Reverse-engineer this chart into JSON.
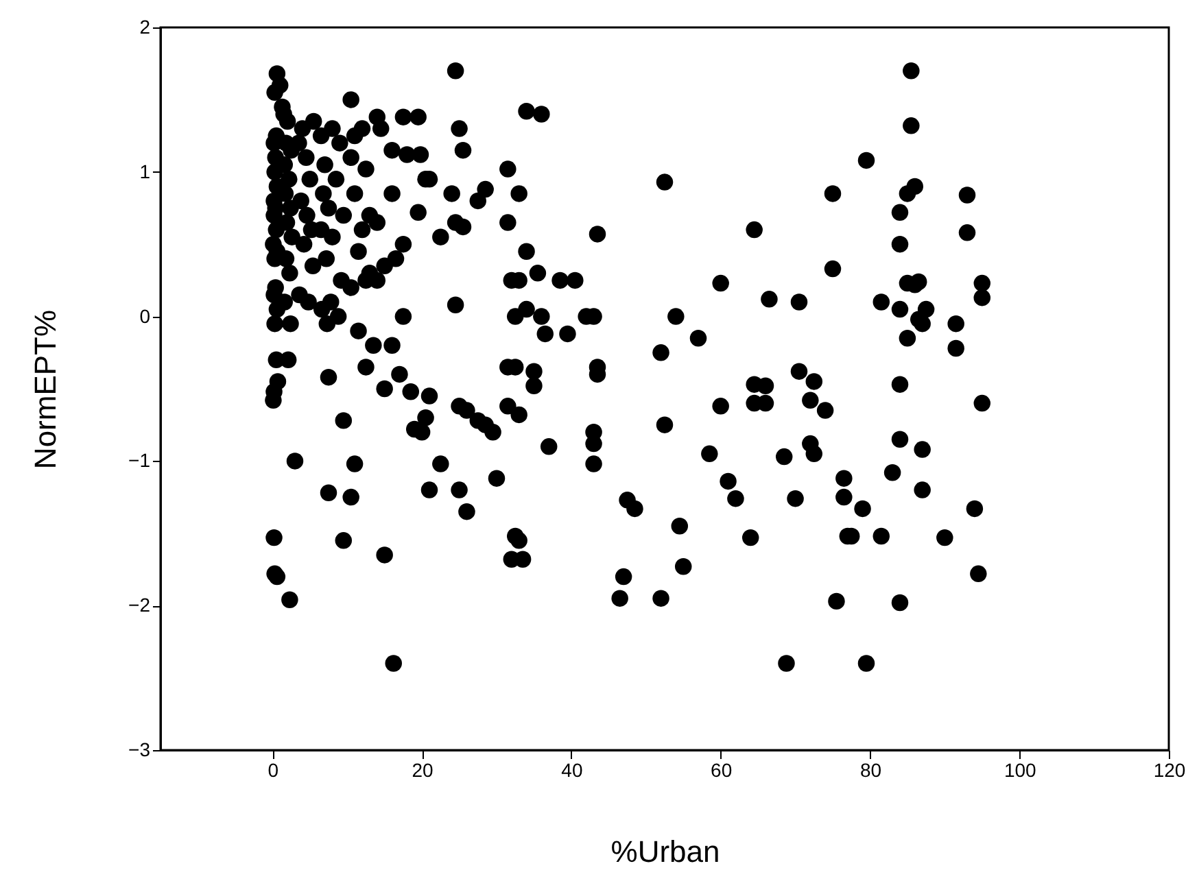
{
  "chart_data": {
    "type": "scatter",
    "xlabel": "%Urban",
    "ylabel": "NormEPT%",
    "xlim": [
      -15,
      120
    ],
    "xticks": [
      0,
      20,
      40,
      60,
      80,
      100,
      120
    ],
    "ylim": [
      -3,
      2
    ],
    "yticks": [
      -3,
      -2,
      -1,
      0,
      1,
      2
    ],
    "grid": false,
    "marker": "circle",
    "series": [
      {
        "color": "#000000",
        "x": [
          0.3,
          0.6,
          1,
          1.3,
          0.5,
          0.2,
          0.4,
          0.3,
          0.6,
          0.2,
          0.4,
          0.2,
          0.5,
          0.1,
          0.6,
          0.3,
          0.4,
          0.2,
          0.6,
          0.3,
          0.5,
          0.7,
          0.2,
          0.1,
          0.2,
          0.3,
          0.6,
          1.5,
          2,
          1.8,
          2.5,
          1.6,
          2.2,
          1.7,
          2.4,
          1.9,
          2.6,
          1.8,
          2.3,
          1.6,
          2.4,
          2.1,
          2.3,
          4,
          5.5,
          3.5,
          4.5,
          5,
          3.8,
          4.6,
          5.2,
          4.2,
          5.4,
          3.6,
          4.8,
          3,
          8,
          6.5,
          9,
          7,
          8.5,
          6.8,
          7.5,
          9.5,
          6.5,
          8,
          7.2,
          9.2,
          7.8,
          6.6,
          8.8,
          7.3,
          7.5,
          7.5,
          9.5,
          9.5,
          10.5,
          12,
          11,
          10.5,
          12.5,
          11,
          13,
          12,
          11.5,
          13,
          10.5,
          12.5,
          11.5,
          13.5,
          12.5,
          11,
          10.5,
          14,
          17.5,
          19.5,
          14.5,
          16,
          18,
          19.8,
          20.5,
          16,
          19.5,
          14,
          17.5,
          16.5,
          15,
          14,
          17.5,
          16,
          17,
          15,
          18.5,
          19,
          20,
          15,
          16.2,
          24.5,
          25,
          25.5,
          21,
          24,
          27.5,
          24.5,
          25.5,
          22.5,
          24.5,
          21,
          25,
          26,
          20.5,
          27.5,
          28.5,
          29.5,
          22.5,
          21,
          25,
          26,
          30,
          28.5,
          34,
          36,
          31.5,
          33,
          31.5,
          34,
          35.5,
          32,
          33,
          34,
          32.5,
          36,
          36.5,
          31.5,
          35,
          32.5,
          35,
          31.5,
          33,
          37,
          32.5,
          33,
          32,
          33.5,
          38.5,
          39.5,
          40.5,
          42,
          43,
          43.5,
          43.5,
          43.5,
          43,
          43,
          43,
          47.5,
          48.5,
          47,
          46.5,
          52.5,
          52,
          52.5,
          52,
          54,
          57,
          54.5,
          55,
          58.5,
          60,
          60,
          61,
          62,
          64.5,
          64.5,
          66,
          64.5,
          66,
          64,
          66.5,
          68.5,
          68.8,
          70.5,
          70.5,
          70,
          72.5,
          72,
          72,
          72.5,
          74,
          75,
          75,
          76.5,
          76.5,
          75.5,
          77,
          77.5,
          79,
          79.5,
          79.5,
          81.5,
          81.5,
          83,
          85.5,
          85.5,
          86,
          85,
          84,
          84,
          85,
          86,
          84,
          87,
          86.5,
          86.5,
          85,
          84,
          84,
          84,
          87,
          87,
          87.5,
          91.5,
          91.5,
          90,
          93,
          93,
          94,
          94.5,
          95,
          95,
          95
        ],
        "values": [
          1.55,
          1.68,
          1.6,
          1.45,
          1.25,
          1.2,
          1.1,
          1.0,
          0.9,
          0.8,
          0.75,
          0.7,
          0.6,
          0.5,
          0.45,
          0.4,
          0.2,
          0.15,
          0.05,
          -0.05,
          -0.3,
          -0.45,
          -0.52,
          -0.58,
          -1.53,
          -1.78,
          -1.8,
          1.4,
          1.35,
          1.2,
          1.15,
          1.05,
          0.95,
          0.85,
          0.75,
          0.65,
          0.55,
          0.4,
          0.3,
          0.1,
          -0.05,
          -0.3,
          -1.96,
          1.3,
          1.35,
          1.2,
          1.1,
          0.95,
          0.8,
          0.7,
          0.6,
          0.5,
          0.35,
          0.15,
          0.1,
          -1.0,
          1.3,
          1.25,
          1.2,
          1.05,
          0.95,
          0.85,
          0.75,
          0.7,
          0.6,
          0.55,
          0.4,
          0.25,
          0.1,
          0.05,
          0,
          -0.05,
          -0.42,
          -1.22,
          -0.72,
          -1.55,
          1.5,
          1.3,
          1.25,
          1.1,
          1.02,
          0.85,
          0.7,
          0.6,
          0.45,
          0.3,
          0.2,
          0.25,
          -0.1,
          -0.2,
          -0.35,
          -1.02,
          -1.25,
          1.38,
          1.38,
          1.38,
          1.3,
          1.15,
          1.12,
          1.12,
          0.95,
          0.85,
          0.72,
          0.65,
          0.5,
          0.4,
          0.35,
          0.25,
          0,
          -0.2,
          -0.4,
          -0.5,
          -0.52,
          -0.78,
          -0.8,
          -1.65,
          -2.4,
          1.7,
          1.3,
          1.15,
          0.95,
          0.85,
          0.8,
          0.65,
          0.62,
          0.55,
          0.08,
          -0.55,
          -0.62,
          -0.65,
          -0.7,
          -0.72,
          -0.75,
          -0.8,
          -1.02,
          -1.2,
          -1.2,
          -1.35,
          -1.12,
          0.88,
          1.42,
          1.4,
          1.02,
          0.85,
          0.65,
          0.45,
          0.3,
          0.25,
          0.25,
          0.05,
          0,
          0,
          -0.12,
          -0.35,
          -0.38,
          -0.35,
          -0.48,
          -0.62,
          -0.68,
          -0.9,
          -1.52,
          -1.55,
          -1.68,
          -1.68,
          0.25,
          -0.12,
          0.25,
          0,
          0,
          -0.35,
          -0.4,
          0.57,
          -0.8,
          -0.88,
          -1.02,
          -1.27,
          -1.33,
          -1.8,
          -1.95,
          0.93,
          -0.25,
          -0.75,
          -1.95,
          0,
          -0.15,
          -1.45,
          -1.73,
          -0.95,
          0.23,
          -0.62,
          -1.14,
          -1.26,
          0.6,
          -0.47,
          -0.48,
          -0.6,
          -0.6,
          -1.53,
          0.12,
          -0.97,
          -2.4,
          0.1,
          -0.38,
          -1.26,
          -0.45,
          -0.58,
          -0.88,
          -0.95,
          -0.65,
          0.85,
          0.33,
          -1.12,
          -1.25,
          -1.97,
          -1.52,
          -1.52,
          -1.33,
          1.08,
          -2.4,
          0.1,
          -1.52,
          -1.08,
          1.7,
          1.32,
          0.9,
          0.85,
          0.72,
          0.5,
          0.23,
          0.22,
          0.05,
          -0.05,
          -0.02,
          0.24,
          -0.15,
          -0.47,
          -0.85,
          -1.98,
          -0.92,
          -1.2,
          0.05,
          -0.05,
          -0.22,
          -1.53,
          0.84,
          0.58,
          -1.33,
          -1.78,
          0.23,
          0.13,
          -0.6
        ]
      }
    ]
  }
}
